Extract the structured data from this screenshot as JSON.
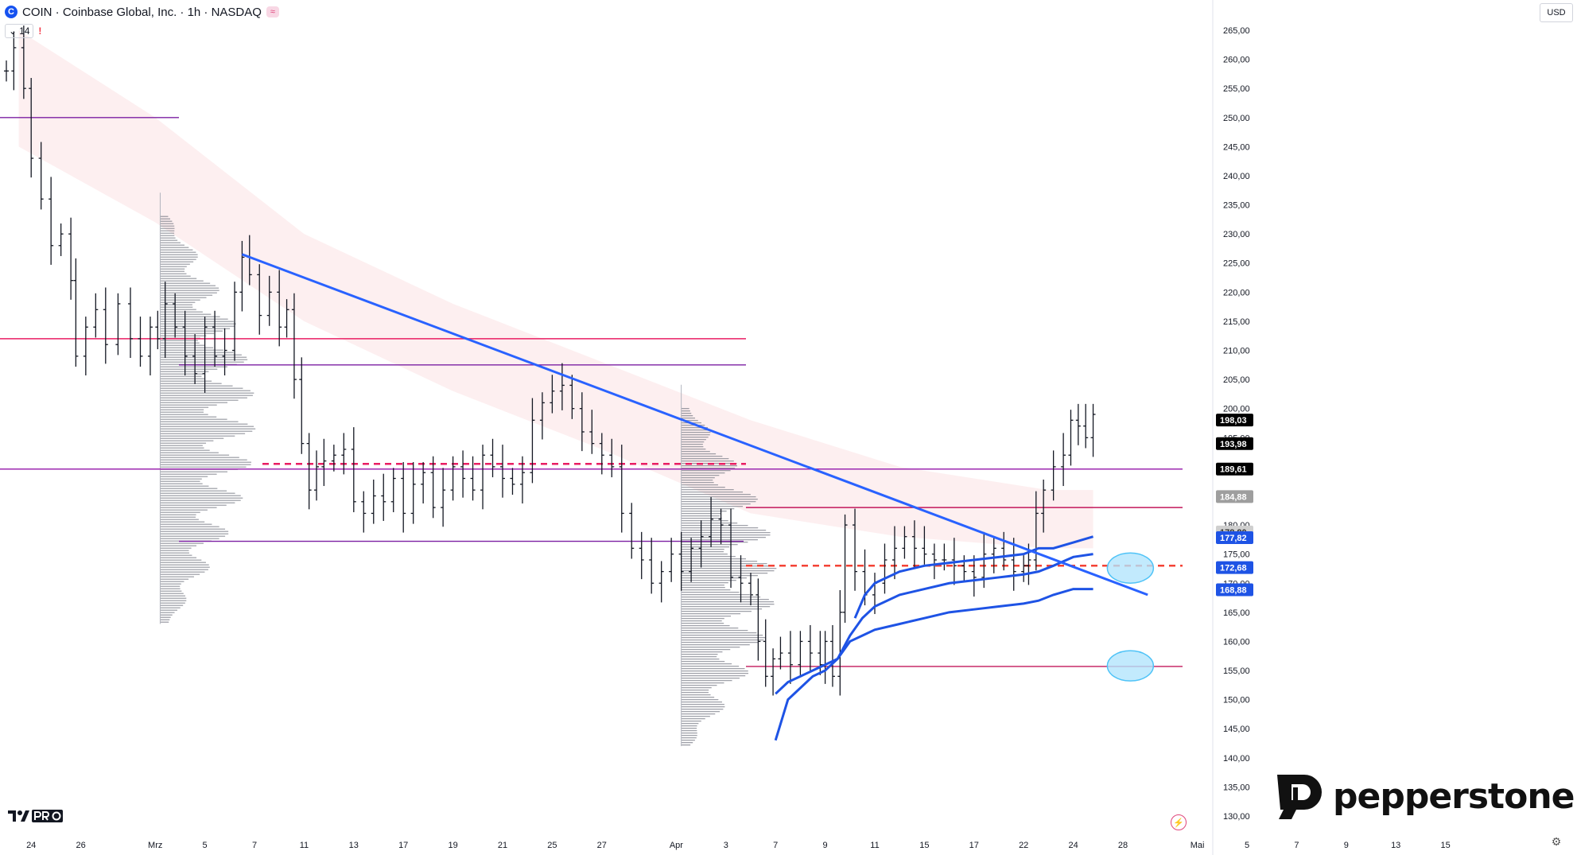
{
  "header": {
    "title": "COIN · Coinbase Global, Inc. · 1h · NASDAQ",
    "logo_letter": "C",
    "badge_symbol": "≈"
  },
  "indicator": {
    "value": "14",
    "warning": "!"
  },
  "currency": "USD",
  "brand": {
    "name": "pepperstone"
  },
  "chart_data": {
    "type": "candlestick",
    "title": "",
    "y_axis": {
      "ticks": [
        130,
        135,
        140,
        145,
        150,
        155,
        160,
        165,
        170,
        175,
        180,
        185,
        190,
        195,
        200,
        205,
        210,
        215,
        220,
        225,
        230,
        235,
        240,
        245,
        250,
        255,
        260,
        265
      ],
      "tick_labels": [
        "130,00",
        "135,00",
        "140,00",
        "145,00",
        "150,00",
        "155,00",
        "160,00",
        "165,00",
        "170,00",
        "175,00",
        "180,00",
        "185,00",
        "190,00",
        "195,00",
        "200,00",
        "205,00",
        "210,00",
        "215,00",
        "220,00",
        "225,00",
        "230,00",
        "235,00",
        "240,00",
        "245,00",
        "250,00",
        "255,00",
        "260,00",
        "265,00"
      ],
      "range": [
        128,
        268
      ],
      "side": "right"
    },
    "x_axis": {
      "ticks": [
        {
          "label": "24",
          "t": 1
        },
        {
          "label": "26",
          "t": 3
        },
        {
          "label": "Mrz",
          "t": 6
        },
        {
          "label": "5",
          "t": 8
        },
        {
          "label": "7",
          "t": 10
        },
        {
          "label": "11",
          "t": 12
        },
        {
          "label": "13",
          "t": 14
        },
        {
          "label": "17",
          "t": 16
        },
        {
          "label": "19",
          "t": 18
        },
        {
          "label": "21",
          "t": 20
        },
        {
          "label": "25",
          "t": 22
        },
        {
          "label": "27",
          "t": 24
        },
        {
          "label": "Apr",
          "t": 27
        },
        {
          "label": "3",
          "t": 29
        },
        {
          "label": "7",
          "t": 31
        },
        {
          "label": "9",
          "t": 33
        },
        {
          "label": "11",
          "t": 35
        },
        {
          "label": "15",
          "t": 37
        },
        {
          "label": "17",
          "t": 39
        },
        {
          "label": "22",
          "t": 41
        },
        {
          "label": "24",
          "t": 43
        },
        {
          "label": "28",
          "t": 45
        },
        {
          "label": "Mai",
          "t": 48
        },
        {
          "label": "5",
          "t": 50
        },
        {
          "label": "7",
          "t": 52
        },
        {
          "label": "9",
          "t": 54
        },
        {
          "label": "13",
          "t": 56
        },
        {
          "label": "15",
          "t": 58
        }
      ]
    },
    "price_series": [
      [
        0,
        258
      ],
      [
        0.3,
        262
      ],
      [
        0.7,
        255
      ],
      [
        1,
        243
      ],
      [
        1.4,
        236
      ],
      [
        1.8,
        228
      ],
      [
        2.2,
        230
      ],
      [
        2.6,
        222
      ],
      [
        2.8,
        209
      ],
      [
        3.2,
        214
      ],
      [
        3.6,
        217
      ],
      [
        4,
        211
      ],
      [
        4.5,
        218
      ],
      [
        5,
        212
      ],
      [
        5.4,
        209
      ],
      [
        5.8,
        214
      ],
      [
        6.1,
        212
      ],
      [
        6.4,
        218
      ],
      [
        6.8,
        214
      ],
      [
        7.2,
        209
      ],
      [
        7.6,
        206
      ],
      [
        8,
        214
      ],
      [
        8.4,
        209
      ],
      [
        8.8,
        210
      ],
      [
        9.2,
        220
      ],
      [
        9.5,
        226
      ],
      [
        9.8,
        223
      ],
      [
        10.2,
        216
      ],
      [
        10.6,
        220
      ],
      [
        11,
        214
      ],
      [
        11.3,
        217
      ],
      [
        11.6,
        205
      ],
      [
        11.9,
        194
      ],
      [
        12.2,
        186
      ],
      [
        12.5,
        190
      ],
      [
        12.8,
        191
      ],
      [
        13.2,
        192
      ],
      [
        13.6,
        193
      ],
      [
        14,
        184
      ],
      [
        14.4,
        182
      ],
      [
        14.8,
        185
      ],
      [
        15.2,
        184
      ],
      [
        15.6,
        188
      ],
      [
        16,
        182
      ],
      [
        16.4,
        187
      ],
      [
        16.8,
        189
      ],
      [
        17.2,
        183
      ],
      [
        17.6,
        186
      ],
      [
        18,
        190
      ],
      [
        18.4,
        188
      ],
      [
        18.8,
        186
      ],
      [
        19.2,
        192
      ],
      [
        19.6,
        190
      ],
      [
        20,
        188
      ],
      [
        20.4,
        187
      ],
      [
        20.8,
        189
      ],
      [
        21.2,
        198
      ],
      [
        21.6,
        201
      ],
      [
        22,
        203
      ],
      [
        22.4,
        204
      ],
      [
        22.8,
        200
      ],
      [
        23.2,
        196
      ],
      [
        23.6,
        194
      ],
      [
        24,
        192
      ],
      [
        24.4,
        190
      ],
      [
        24.8,
        182
      ],
      [
        25.2,
        176
      ],
      [
        25.6,
        174
      ],
      [
        26,
        170
      ],
      [
        26.4,
        172
      ],
      [
        26.8,
        175
      ],
      [
        27.2,
        172
      ],
      [
        27.6,
        176
      ],
      [
        28,
        178
      ],
      [
        28.4,
        181
      ],
      [
        28.8,
        180
      ],
      [
        29.2,
        171
      ],
      [
        29.6,
        170
      ],
      [
        30,
        168
      ],
      [
        30.3,
        160
      ],
      [
        30.6,
        154
      ],
      [
        30.9,
        157
      ],
      [
        31.2,
        158
      ],
      [
        31.6,
        156
      ],
      [
        32,
        160
      ],
      [
        32.4,
        158
      ],
      [
        32.8,
        156
      ],
      [
        33,
        160
      ],
      [
        33.3,
        154
      ],
      [
        33.6,
        165
      ],
      [
        33.8,
        180
      ],
      [
        34.2,
        172
      ],
      [
        34.6,
        168
      ],
      [
        35,
        170
      ],
      [
        35.4,
        174
      ],
      [
        35.8,
        176
      ],
      [
        36.2,
        178
      ],
      [
        36.6,
        176
      ],
      [
        37,
        175
      ],
      [
        37.4,
        174
      ],
      [
        37.8,
        174
      ],
      [
        38.2,
        173
      ],
      [
        38.6,
        172
      ],
      [
        39,
        171
      ],
      [
        39.4,
        175
      ],
      [
        39.8,
        176
      ],
      [
        40.2,
        174
      ],
      [
        40.6,
        172
      ],
      [
        41,
        173
      ],
      [
        41.2,
        174
      ],
      [
        41.5,
        182
      ],
      [
        41.8,
        186
      ],
      [
        42.2,
        190
      ],
      [
        42.6,
        192
      ],
      [
        42.9,
        198
      ],
      [
        43.2,
        197
      ],
      [
        43.5,
        195
      ],
      [
        43.8,
        199
      ]
    ],
    "trendline": {
      "from": [
        9.5,
        226.5
      ],
      "to": [
        46,
        168
      ]
    },
    "horizontal_levels": [
      {
        "price": 250,
        "color": "#7b1fa2"
      },
      {
        "price": 212,
        "color": "#e91e63"
      },
      {
        "price": 207.5,
        "color": "#7b1fa2"
      },
      {
        "price": 190.5,
        "color": "#e91e63",
        "dashed": true
      },
      {
        "price": 189.61,
        "color": "#9c27b0"
      },
      {
        "price": 177.2,
        "color": "#7b1fa2"
      },
      {
        "price": 183,
        "color": "#c2185b"
      },
      {
        "price": 173,
        "color": "#f44336",
        "dashed": true
      },
      {
        "price": 155.7,
        "color": "#c2185b"
      }
    ],
    "price_labels": [
      {
        "text": "198,03",
        "price": 198.03,
        "bg": "#000000",
        "fg": "#ffffff"
      },
      {
        "text": "193,98",
        "price": 193.98,
        "bg": "#000000",
        "fg": "#ffffff"
      },
      {
        "text": "189,61",
        "price": 189.61,
        "bg": "#000000",
        "fg": "#ffffff"
      },
      {
        "text": "184,88",
        "price": 184.88,
        "bg": "#9e9e9e",
        "fg": "#ffffff"
      },
      {
        "text": "178,80",
        "price": 178.8,
        "bg": "#cfcfcf",
        "fg": "#333333"
      },
      {
        "text": "177,82",
        "price": 177.82,
        "bg": "#1e53e5",
        "fg": "#ffffff"
      },
      {
        "text": "172,68",
        "price": 172.68,
        "bg": "#1e53e5",
        "fg": "#ffffff"
      },
      {
        "text": "168,88",
        "price": 168.88,
        "bg": "#1e53e5",
        "fg": "#ffffff"
      }
    ],
    "vwap_bands": [
      {
        "color": "#1e53e5",
        "points": [
          [
            31,
            143
          ],
          [
            31.5,
            150
          ],
          [
            32,
            152
          ],
          [
            32.5,
            154
          ],
          [
            33,
            155
          ],
          [
            33.5,
            157
          ],
          [
            34,
            160
          ],
          [
            34.5,
            161
          ],
          [
            35,
            162
          ],
          [
            36,
            163
          ],
          [
            37,
            164
          ],
          [
            38,
            165
          ],
          [
            39,
            165.5
          ],
          [
            40,
            166
          ],
          [
            41,
            166.5
          ],
          [
            41.6,
            167
          ],
          [
            42.2,
            168
          ],
          [
            43,
            169
          ],
          [
            43.8,
            169
          ]
        ]
      },
      {
        "color": "#1e53e5",
        "points": [
          [
            31,
            151
          ],
          [
            31.5,
            153
          ],
          [
            32,
            154
          ],
          [
            32.5,
            155
          ],
          [
            33,
            156
          ],
          [
            33.5,
            157
          ],
          [
            34,
            161
          ],
          [
            34.5,
            164
          ],
          [
            35,
            166
          ],
          [
            36,
            168
          ],
          [
            37,
            169
          ],
          [
            38,
            170
          ],
          [
            39,
            170.5
          ],
          [
            40,
            171
          ],
          [
            41,
            171.5
          ],
          [
            41.6,
            172
          ],
          [
            42.2,
            173
          ],
          [
            43,
            174.5
          ],
          [
            43.8,
            175
          ]
        ]
      },
      {
        "color": "#1e53e5",
        "points": [
          [
            34.2,
            164
          ],
          [
            34.6,
            168
          ],
          [
            35,
            170
          ],
          [
            36,
            172
          ],
          [
            37,
            173
          ],
          [
            38,
            173.5
          ],
          [
            39,
            174
          ],
          [
            40,
            174.5
          ],
          [
            41,
            175
          ],
          [
            41.6,
            176
          ],
          [
            42.2,
            176
          ],
          [
            43,
            177
          ],
          [
            43.8,
            178
          ]
        ]
      }
    ],
    "target_ellipses": [
      {
        "t": 45.3,
        "price": 172.6
      },
      {
        "t": 45.3,
        "price": 155.8
      }
    ],
    "volume_profiles": [
      {
        "t": 6.2,
        "top": 233,
        "bottom": 163
      },
      {
        "t": 27.2,
        "top": 200,
        "bottom": 142
      }
    ]
  }
}
